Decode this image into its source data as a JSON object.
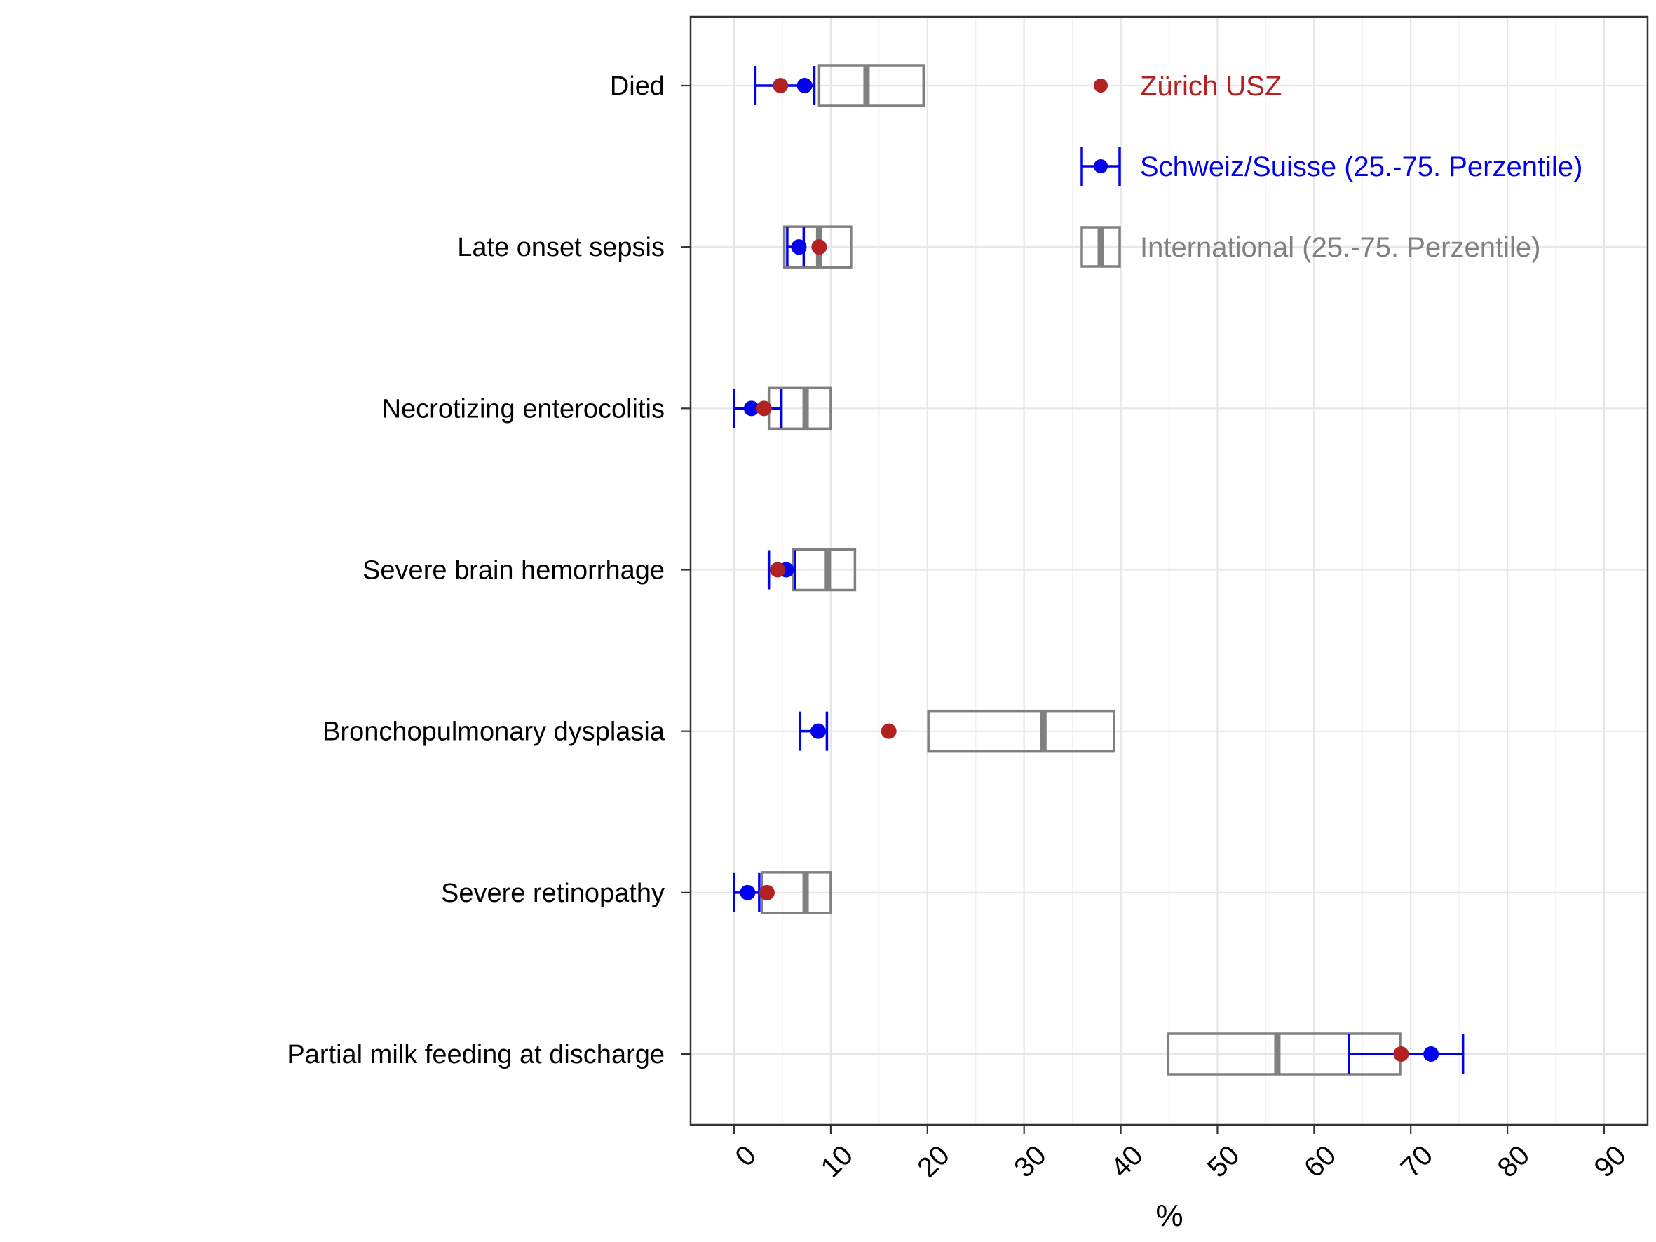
{
  "chart_data": {
    "type": "dot-errorbar-box",
    "xlabel": "%",
    "xlim": [
      -4.5,
      94.5
    ],
    "xticks": [
      0,
      10,
      20,
      30,
      40,
      50,
      60,
      70,
      80,
      90
    ],
    "grid": true,
    "legend_position": "top-right",
    "categories": [
      "Died",
      "Late onset sepsis",
      "Necrotizing enterocolitis",
      "Severe brain hemorrhage",
      "Bronchopulmonary dysplasia",
      "Severe retinopathy",
      "Partial milk feeding at discharge"
    ],
    "series": [
      {
        "name": "Zürich USZ",
        "color": "#b22222",
        "kind": "point",
        "values": [
          4.8,
          8.8,
          3.1,
          4.5,
          16.0,
          3.4,
          69.0
        ]
      },
      {
        "name": "Schweiz/Suisse (25.-75. Perzentile)",
        "color": "#0000ee",
        "kind": "point-range",
        "values": [
          7.3,
          6.7,
          1.8,
          5.4,
          8.7,
          1.4,
          72.1
        ],
        "low": [
          2.2,
          5.5,
          0.0,
          3.6,
          6.8,
          0.0,
          63.6
        ],
        "high": [
          8.3,
          7.2,
          4.9,
          6.3,
          9.6,
          2.6,
          75.4
        ]
      },
      {
        "name": "International (25.-75. Perzentile)",
        "color": "#808080",
        "kind": "box",
        "low": [
          8.8,
          5.2,
          3.6,
          6.1,
          20.1,
          2.9,
          44.9
        ],
        "median": [
          13.7,
          8.8,
          7.4,
          9.7,
          32.0,
          7.4,
          56.2
        ],
        "high": [
          19.6,
          12.1,
          10.0,
          12.5,
          39.3,
          10.0,
          68.9
        ]
      }
    ]
  }
}
